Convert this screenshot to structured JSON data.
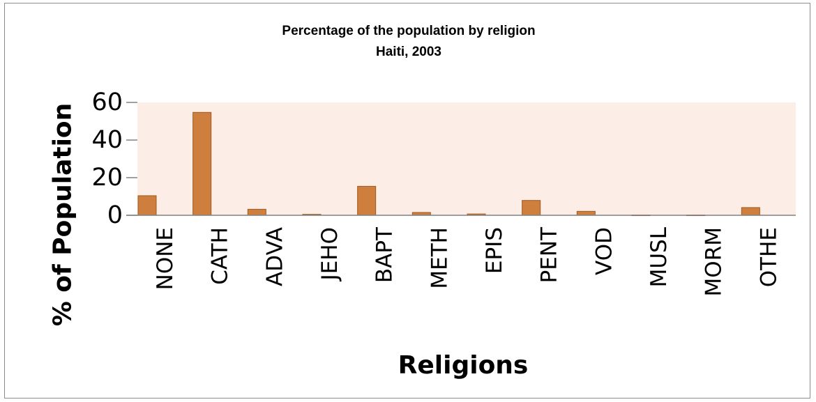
{
  "chart_data": {
    "type": "bar",
    "title": "Percentage of  the population by religion",
    "subtitle": "Haiti, 2003",
    "xlabel": "Religions",
    "ylabel": "% of Population",
    "categories": [
      "NONE",
      "CATH",
      "ADVA",
      "JEHO",
      "BAPT",
      "METH",
      "EPIS",
      "PENT",
      "VOD",
      "MUSL",
      "MORM",
      "OTHE"
    ],
    "values": [
      10.4,
      54.7,
      3.2,
      0.5,
      15.4,
      1.5,
      0.7,
      7.9,
      2.1,
      0.1,
      0.1,
      4.1
    ],
    "yticks": [
      "0",
      "20",
      "40",
      "60"
    ],
    "ylim": [
      0,
      60
    ],
    "grid": false,
    "colors": {
      "bar": "#CF7F3D",
      "bar_stroke": "#9E5A22",
      "plot_background": "#FCEDE6",
      "axis": "#808080"
    }
  }
}
